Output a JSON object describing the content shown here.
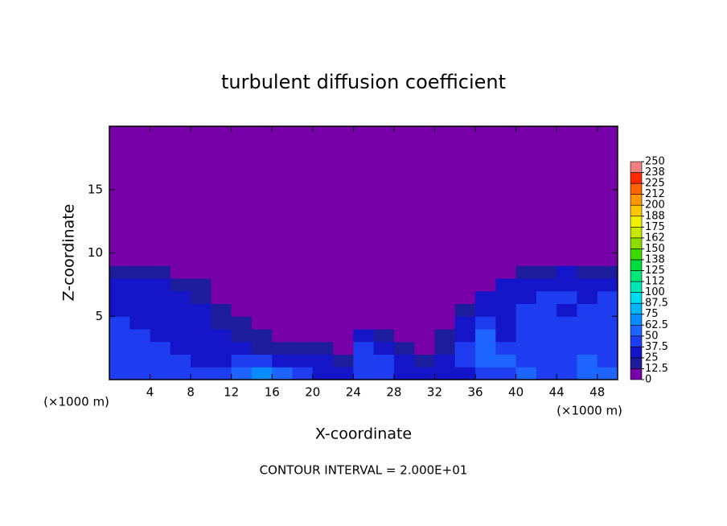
{
  "chart_data": {
    "type": "contour",
    "title": "turbulent diffusion coefficient",
    "x_label": "X-coordinate",
    "y_label": "Z-coordinate",
    "x_unit_label": "(×1000 m)",
    "y_unit_label": "(×1000 m)",
    "annotation": "CONTOUR INTERVAL = 2.000E+01",
    "xlim": [
      0,
      50
    ],
    "ylim": [
      0,
      20
    ],
    "xticks": [
      4,
      8,
      12,
      16,
      20,
      24,
      28,
      32,
      36,
      40,
      44,
      48
    ],
    "yticks": [
      5,
      10,
      15
    ],
    "x": [
      1,
      3,
      5,
      7,
      9,
      11,
      13,
      15,
      17,
      19,
      21,
      23,
      25,
      27,
      29,
      31,
      33,
      35,
      37,
      39,
      41,
      43,
      45,
      47,
      49
    ],
    "z": [
      0.5,
      1.5,
      2.5,
      3.5,
      4.5,
      5.5,
      6.5,
      7.5,
      8.5,
      9.5
    ],
    "values": [
      [
        45,
        45,
        42,
        40,
        38,
        40,
        60,
        65,
        55,
        45,
        35,
        30,
        38,
        40,
        30,
        32,
        28,
        35,
        40,
        45,
        50,
        45,
        48,
        50,
        52
      ],
      [
        45,
        42,
        40,
        38,
        35,
        30,
        40,
        45,
        30,
        25,
        28,
        20,
        45,
        40,
        25,
        22,
        25,
        40,
        55,
        50,
        48,
        42,
        45,
        50,
        48
      ],
      [
        42,
        40,
        38,
        35,
        30,
        28,
        25,
        22,
        20,
        18,
        15,
        12,
        40,
        30,
        15,
        12,
        20,
        38,
        60,
        45,
        40,
        38,
        42,
        48,
        45
      ],
      [
        40,
        38,
        35,
        32,
        30,
        25,
        20,
        15,
        12,
        10,
        8,
        10,
        30,
        15,
        8,
        10,
        15,
        35,
        55,
        35,
        38,
        40,
        40,
        45,
        42
      ],
      [
        38,
        36,
        34,
        30,
        28,
        22,
        18,
        10,
        8,
        6,
        5,
        5,
        8,
        6,
        5,
        5,
        10,
        30,
        40,
        35,
        38,
        45,
        38,
        42,
        40
      ],
      [
        35,
        35,
        32,
        30,
        25,
        20,
        12,
        6,
        5,
        5,
        5,
        5,
        5,
        5,
        5,
        5,
        5,
        20,
        35,
        35,
        40,
        38,
        35,
        40,
        38
      ],
      [
        35,
        33,
        30,
        28,
        20,
        12,
        6,
        5,
        5,
        5,
        5,
        5,
        5,
        5,
        5,
        5,
        5,
        8,
        25,
        30,
        35,
        38,
        40,
        35,
        38
      ],
      [
        30,
        30,
        28,
        22,
        15,
        6,
        5,
        5,
        5,
        5,
        5,
        5,
        5,
        5,
        5,
        5,
        5,
        5,
        12,
        25,
        30,
        30,
        32,
        32,
        35
      ],
      [
        20,
        18,
        15,
        10,
        5,
        5,
        5,
        5,
        5,
        5,
        5,
        5,
        5,
        5,
        5,
        5,
        5,
        5,
        5,
        8,
        15,
        20,
        25,
        22,
        20
      ],
      [
        5,
        8,
        10,
        5,
        5,
        5,
        5,
        5,
        5,
        5,
        5,
        5,
        5,
        5,
        5,
        5,
        5,
        5,
        5,
        5,
        5,
        5,
        8,
        10,
        8
      ]
    ],
    "colorbar": {
      "levels": [
        0,
        12.5,
        25,
        37.5,
        50,
        62.5,
        75,
        87.5,
        100,
        {
          "value": 112.5,
          "label": "112"
        },
        125,
        {
          "value": 137.5,
          "label": "138"
        },
        150,
        {
          "value": 162.5,
          "label": "162"
        },
        175,
        {
          "value": 187.5,
          "label": "188"
        },
        200,
        {
          "value": 212.5,
          "label": "212"
        },
        225,
        {
          "value": 237.5,
          "label": "238"
        },
        250
      ],
      "colors": [
        "#7800a8",
        "#1c1c9c",
        "#1414c8",
        "#1e3cf0",
        "#1e64ff",
        "#0a8cff",
        "#00b4ff",
        "#00dcf0",
        "#00e6b4",
        "#00e678",
        "#00dc3c",
        "#3cdc00",
        "#8cdc00",
        "#c8e600",
        "#f0f000",
        "#ffc800",
        "#ff9600",
        "#ff6400",
        "#ff2800",
        "#f08080"
      ]
    }
  }
}
